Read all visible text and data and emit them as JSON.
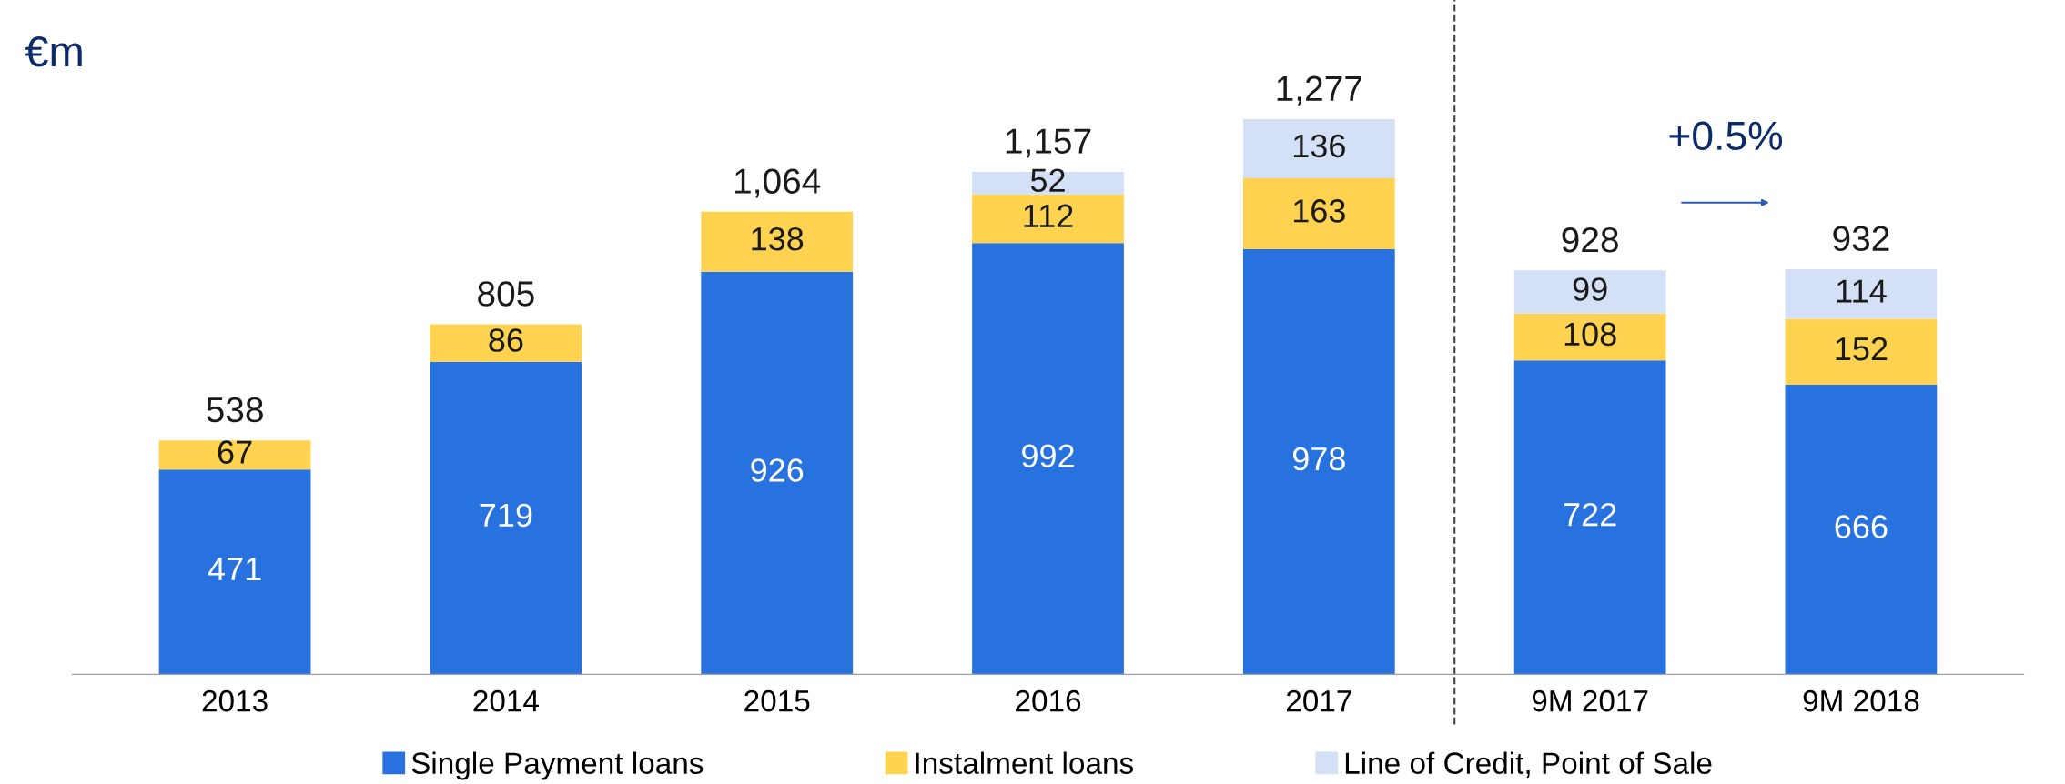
{
  "chart_data": {
    "type": "bar",
    "title": "€m",
    "stacked": true,
    "data_labels": true,
    "legend": "bottom",
    "grid": false,
    "tick_labels": "x",
    "categories": [
      "2013",
      "2014",
      "2015",
      "2016",
      "2017",
      "9M 2017",
      "9M 2018"
    ],
    "series": [
      {
        "name": "Single Payment loans",
        "color": "#2872e0",
        "values": [
          471,
          719,
          926,
          992,
          978,
          722,
          666
        ]
      },
      {
        "name": "Instalment loans",
        "color": "#ffd34f",
        "values": [
          67,
          86,
          138,
          112,
          163,
          108,
          152
        ]
      },
      {
        "name": "Line of Credit, Point of Sale",
        "color": "#d4e0f6",
        "values": [
          null,
          null,
          null,
          52,
          136,
          99,
          114
        ]
      }
    ],
    "totals": [
      "538",
      "805",
      "1,064",
      "1,157",
      "1,277",
      "928",
      "932"
    ],
    "annotations": [
      "+0.5%"
    ]
  }
}
